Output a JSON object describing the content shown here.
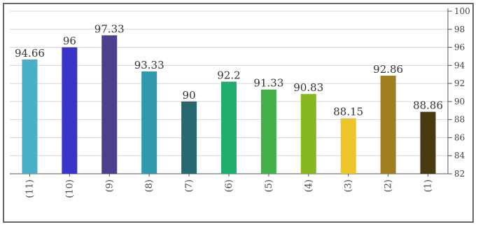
{
  "chart_data": {
    "type": "bar",
    "categories": [
      "(11)",
      "(10)",
      "(9)",
      "(8)",
      "(7)",
      "(6)",
      "(5)",
      "(4)",
      "(3)",
      "(2)",
      "(1)"
    ],
    "values": [
      94.66,
      96,
      97.33,
      93.33,
      90,
      92.2,
      91.33,
      90.83,
      88.15,
      92.86,
      88.86
    ],
    "data_labels": [
      "94.66",
      "96",
      "97.33",
      "93.33",
      "90",
      "92.2",
      "91.33",
      "90.83",
      "88.15",
      "92.86",
      "88.86"
    ],
    "colors": [
      "#4ab0c8",
      "#3a34c9",
      "#4b3f8e",
      "#2f9aae",
      "#256870",
      "#1fae6e",
      "#44b04a",
      "#86b91f",
      "#ecc52a",
      "#a07e22",
      "#4a3a12"
    ],
    "ylim": [
      82,
      100
    ],
    "y_ticks": [
      "82",
      "84",
      "86",
      "88",
      "90",
      "92",
      "94",
      "96",
      "98",
      "100"
    ],
    "y_axis_side": "right",
    "grid": true,
    "title": "",
    "xlabel": "",
    "ylabel": ""
  }
}
